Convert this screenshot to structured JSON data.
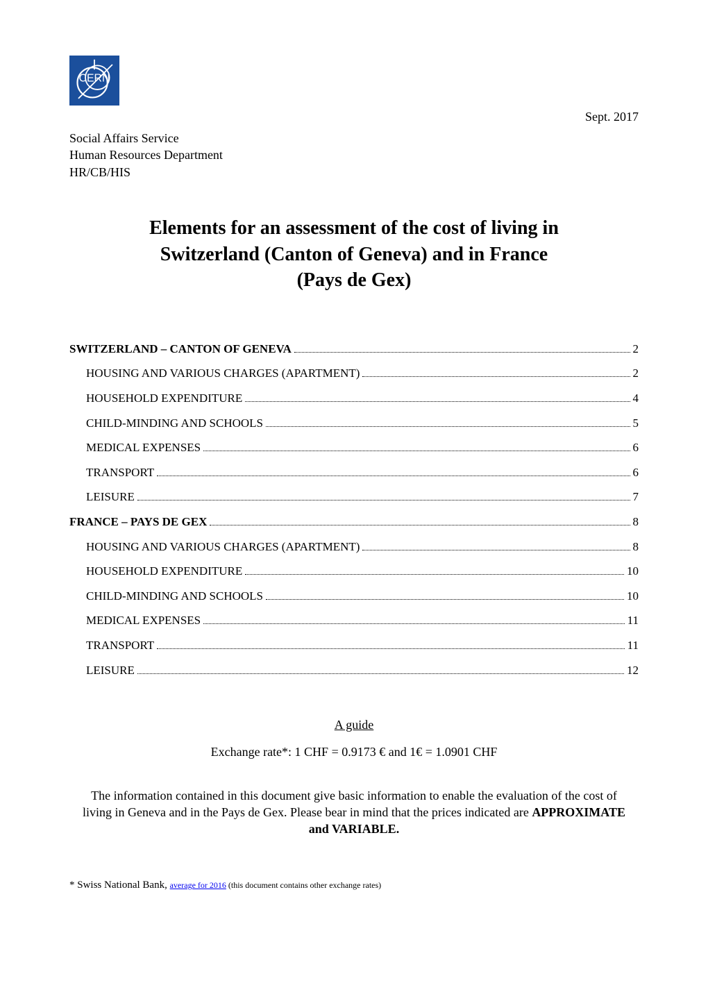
{
  "header": {
    "date": "Sept. 2017",
    "org_line1": "Social Affairs Service",
    "org_line2": "Human Resources Department",
    "org_line3": "HR/CB/HIS",
    "logo_text": "CERN",
    "logo_bg": "#1b4f9c",
    "logo_fg": "#ffffff"
  },
  "title_line1": "Elements for an assessment of the cost of living in",
  "title_line2": "Switzerland (Canton of Geneva) and in France",
  "title_line3": "(Pays de Gex)",
  "toc": [
    {
      "label": "SWITZERLAND – CANTON OF GENEVA",
      "page": "2",
      "level": 1
    },
    {
      "label": "HOUSING AND VARIOUS CHARGES (APARTMENT)",
      "page": "2",
      "level": 2
    },
    {
      "label": "HOUSEHOLD EXPENDITURE",
      "page": "4",
      "level": 2
    },
    {
      "label": "CHILD-MINDING AND SCHOOLS",
      "page": "5",
      "level": 2
    },
    {
      "label": "MEDICAL EXPENSES",
      "page": "6",
      "level": 2
    },
    {
      "label": "TRANSPORT",
      "page": "6",
      "level": 2
    },
    {
      "label": "LEISURE",
      "page": "7",
      "level": 2
    },
    {
      "label": "FRANCE – PAYS DE GEX",
      "page": "8",
      "level": 1
    },
    {
      "label": "HOUSING AND VARIOUS CHARGES (APARTMENT)",
      "page": "8",
      "level": 2
    },
    {
      "label": "HOUSEHOLD EXPENDITURE",
      "page": "10",
      "level": 2
    },
    {
      "label": "CHILD-MINDING AND SCHOOLS",
      "page": "10",
      "level": 2
    },
    {
      "label": "MEDICAL EXPENSES",
      "page": "11",
      "level": 2
    },
    {
      "label": "TRANSPORT",
      "page": "11",
      "level": 2
    },
    {
      "label": "LEISURE",
      "page": "12",
      "level": 2
    }
  ],
  "guide_label": "A guide",
  "exchange_line": "Exchange rate*: 1 CHF = 0.9173 € and 1€ = 1.0901 CHF",
  "disclaimer_1": "The information contained in this document give basic information to enable the evaluation of the cost of living in Geneva and in the Pays de Gex. Please bear in mind that the prices indicated are ",
  "disclaimer_bold": "APPROXIMATE and VARIABLE.",
  "footnote_prefix": "* Swiss National Bank, ",
  "footnote_link": "average for 2016",
  "footnote_tail": " (this document contains other exchange rates)"
}
